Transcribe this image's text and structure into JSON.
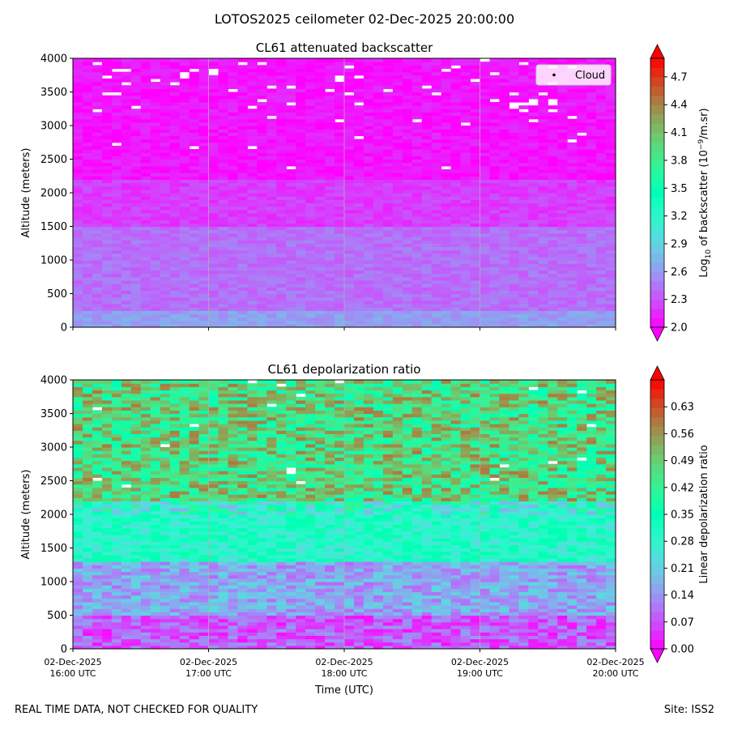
{
  "figure": {
    "title": "LOTOS2025 ceilometer 02-Dec-2025 20:00:00",
    "footer_left": "REAL TIME DATA, NOT CHECKED FOR QUALITY",
    "footer_right": "Site: ISS2"
  },
  "chart_data": [
    {
      "type": "heatmap",
      "title": "CL61 attenuated backscatter",
      "ylabel": "Altitude (meters)",
      "xlabel": "",
      "ylim": [
        0,
        4000
      ],
      "yticks": [
        0,
        500,
        1000,
        1500,
        2000,
        2500,
        3000,
        3500,
        4000
      ],
      "x_range_hours": [
        16,
        20
      ],
      "xticks_hours": [
        16,
        17,
        18,
        19,
        20
      ],
      "grid": "vertical",
      "colormap": "rainbow",
      "colorbar": {
        "label": "Log10 of backscatter (10^-9/m.sr)",
        "range": [
          2.0,
          4.9
        ],
        "ticks": [
          "2.0",
          "2.3",
          "2.6",
          "2.9",
          "3.2",
          "3.5",
          "3.8",
          "4.1",
          "4.4",
          "4.7"
        ],
        "extend": "both"
      },
      "legend": {
        "entries": [
          "Cloud"
        ],
        "placement": "top-right"
      },
      "profile_description": [
        {
          "altitude_m": [
            0,
            250
          ],
          "log10_backscatter": 2.6
        },
        {
          "altitude_m": [
            250,
            1500
          ],
          "log10_backscatter": 2.4
        },
        {
          "altitude_m": [
            1500,
            2200
          ],
          "log10_backscatter": 2.2
        },
        {
          "altitude_m": [
            2200,
            4000
          ],
          "log10_backscatter": 2.05
        }
      ]
    },
    {
      "type": "heatmap",
      "title": "CL61 depolarization ratio",
      "ylabel": "Altitude (meters)",
      "xlabel": "Time (UTC)",
      "ylim": [
        0,
        4000
      ],
      "yticks": [
        0,
        500,
        1000,
        1500,
        2000,
        2500,
        3000,
        3500,
        4000
      ],
      "x_range_hours": [
        16,
        20
      ],
      "xticks_hours": [
        16,
        17,
        18,
        19,
        20
      ],
      "xtick_labels": [
        [
          "02-Dec-2025",
          "16:00 UTC"
        ],
        [
          "02-Dec-2025",
          "17:00 UTC"
        ],
        [
          "02-Dec-2025",
          "18:00 UTC"
        ],
        [
          "02-Dec-2025",
          "19:00 UTC"
        ],
        [
          "02-Dec-2025",
          "20:00 UTC"
        ]
      ],
      "grid": "vertical",
      "colormap": "rainbow",
      "colorbar": {
        "label": "Linear depolarization ratio",
        "range": [
          0.0,
          0.7
        ],
        "ticks": [
          "0.00",
          "0.07",
          "0.14",
          "0.21",
          "0.28",
          "0.35",
          "0.42",
          "0.49",
          "0.56",
          "0.63"
        ],
        "extend": "both"
      },
      "profile_description": [
        {
          "altitude_m": [
            0,
            500
          ],
          "depolarization": 0.08
        },
        {
          "altitude_m": [
            500,
            1300
          ],
          "depolarization": 0.16
        },
        {
          "altitude_m": [
            1300,
            2200
          ],
          "depolarization": 0.3
        },
        {
          "altitude_m": [
            2200,
            4000
          ],
          "depolarization": 0.46
        }
      ]
    }
  ]
}
